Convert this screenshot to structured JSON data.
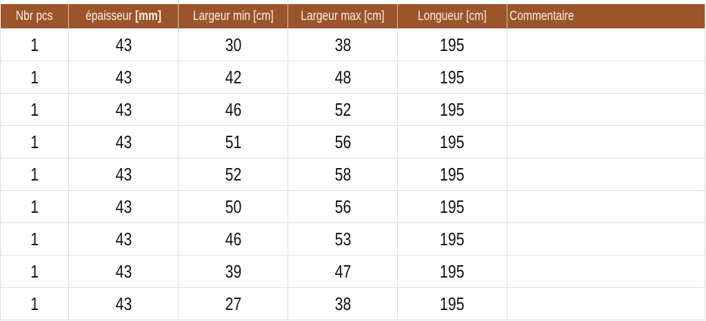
{
  "header_color": "#9c552b",
  "columns": [
    {
      "label": "Nbr pcs",
      "unit": ""
    },
    {
      "label": "épaisseur ",
      "unit": "[mm]"
    },
    {
      "label": "Largeur min [cm]",
      "unit": ""
    },
    {
      "label": "Largeur max [cm]",
      "unit": ""
    },
    {
      "label": "Longueur [cm]",
      "unit": ""
    },
    {
      "label": "Commentaire",
      "unit": ""
    }
  ],
  "rows": [
    [
      "1",
      "43",
      "30",
      "38",
      "195",
      ""
    ],
    [
      "1",
      "43",
      "42",
      "48",
      "195",
      ""
    ],
    [
      "1",
      "43",
      "46",
      "52",
      "195",
      ""
    ],
    [
      "1",
      "43",
      "51",
      "56",
      "195",
      ""
    ],
    [
      "1",
      "43",
      "52",
      "58",
      "195",
      ""
    ],
    [
      "1",
      "43",
      "50",
      "56",
      "195",
      ""
    ],
    [
      "1",
      "43",
      "46",
      "53",
      "195",
      ""
    ],
    [
      "1",
      "43",
      "39",
      "47",
      "195",
      ""
    ],
    [
      "1",
      "43",
      "27",
      "38",
      "195",
      ""
    ]
  ]
}
